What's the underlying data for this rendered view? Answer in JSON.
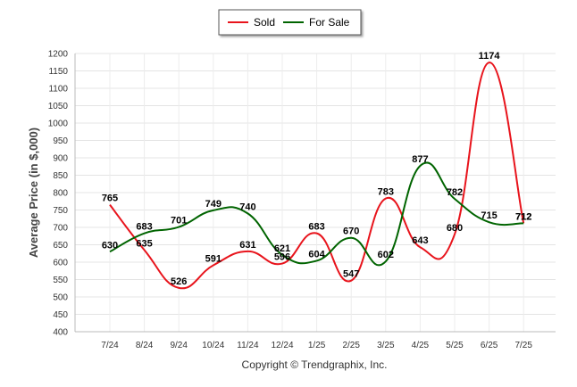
{
  "chart_data": {
    "type": "line",
    "categories": [
      "7/24",
      "8/24",
      "9/24",
      "10/24",
      "11/24",
      "12/24",
      "1/25",
      "2/25",
      "3/25",
      "4/25",
      "5/25",
      "6/25",
      "7/25"
    ],
    "series": [
      {
        "name": "Sold",
        "color": "#e8141c",
        "values": [
          765,
          635,
          526,
          591,
          631,
          596,
          683,
          547,
          783,
          643,
          680,
          1174,
          712
        ]
      },
      {
        "name": "For Sale",
        "color": "#006400",
        "values": [
          630,
          683,
          701,
          749,
          740,
          621,
          604,
          670,
          602,
          877,
          782,
          715,
          712
        ]
      }
    ],
    "xlabel": "",
    "ylabel": "Average Price (in $,000)",
    "ylim": [
      400,
      1200
    ],
    "yticks": [
      400,
      450,
      500,
      550,
      600,
      650,
      700,
      750,
      800,
      850,
      900,
      950,
      1000,
      1050,
      1100,
      1150,
      1200
    ],
    "grid": true,
    "legend": "top-center",
    "footer": "Copyright © Trendgraphix, Inc."
  }
}
